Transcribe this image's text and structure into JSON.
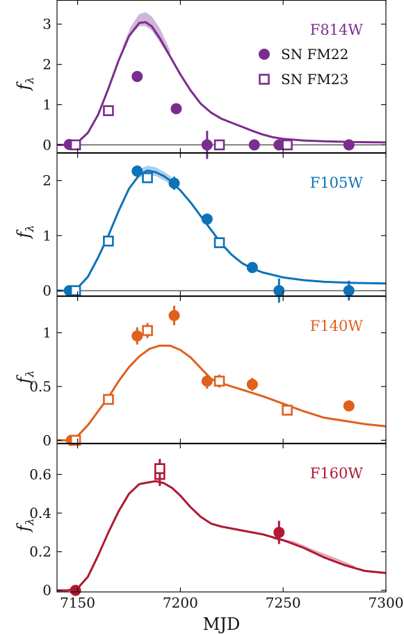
{
  "chart_data": {
    "type": "scatter",
    "xlabel": "MJD",
    "ylabel": "fλ",
    "ylabel_main": "f",
    "ylabel_sub": "λ",
    "xlim": [
      7140,
      7300
    ],
    "xticks": [
      7150,
      7200,
      7250,
      7300
    ],
    "xtick_labels": [
      "7150",
      "7200",
      "7250",
      "7300"
    ],
    "legend": {
      "placement": "top-right",
      "entries": [
        "SN FM22",
        "SN FM23"
      ]
    },
    "panels": [
      {
        "filter": "F814W",
        "color": "#7b2d8e",
        "band_color": "#d1b4dc",
        "ylim": [
          -0.2,
          3.6
        ],
        "yticks": [
          0,
          1,
          2,
          3
        ],
        "ytick_labels": [
          "0",
          "1",
          "2",
          "3"
        ],
        "zero_line": true,
        "model": [
          [
            7140,
            0.0
          ],
          [
            7145,
            0.0
          ],
          [
            7150,
            0.06
          ],
          [
            7155,
            0.3
          ],
          [
            7160,
            0.75
          ],
          [
            7165,
            1.4
          ],
          [
            7170,
            2.1
          ],
          [
            7175,
            2.7
          ],
          [
            7180,
            3.03
          ],
          [
            7183,
            3.05
          ],
          [
            7186,
            2.95
          ],
          [
            7190,
            2.65
          ],
          [
            7195,
            2.2
          ],
          [
            7200,
            1.75
          ],
          [
            7205,
            1.35
          ],
          [
            7210,
            1.02
          ],
          [
            7215,
            0.8
          ],
          [
            7220,
            0.65
          ],
          [
            7225,
            0.55
          ],
          [
            7230,
            0.45
          ],
          [
            7235,
            0.35
          ],
          [
            7240,
            0.26
          ],
          [
            7245,
            0.19
          ],
          [
            7250,
            0.15
          ],
          [
            7260,
            0.11
          ],
          [
            7270,
            0.09
          ],
          [
            7285,
            0.07
          ],
          [
            7300,
            0.06
          ]
        ],
        "band": [
          [
            7172,
            2.35,
            2.45
          ],
          [
            7176,
            2.75,
            2.95
          ],
          [
            7180,
            2.95,
            3.25
          ],
          [
            7183,
            2.95,
            3.3
          ],
          [
            7186,
            2.85,
            3.2
          ],
          [
            7190,
            2.55,
            2.9
          ],
          [
            7195,
            2.15,
            2.35
          ]
        ],
        "fm22": [
          [
            7146,
            0.01,
            0.03
          ],
          [
            7179,
            1.7,
            0.05
          ],
          [
            7198,
            0.9,
            0.05
          ],
          [
            7213,
            0.0,
            0.35
          ],
          [
            7236,
            0.0,
            0.05
          ],
          [
            7248,
            0.0,
            0.05
          ],
          [
            7282,
            0.0,
            0.05
          ]
        ],
        "fm23": [
          [
            7149,
            0.0,
            0.04
          ],
          [
            7165,
            0.85,
            0.06
          ],
          [
            7219,
            0.0,
            0.05
          ],
          [
            7252,
            0.0,
            0.05
          ]
        ]
      },
      {
        "filter": "F105W",
        "color": "#0e72b8",
        "band_color": "#a9d1ee",
        "ylim": [
          -0.1,
          2.5
        ],
        "yticks": [
          0,
          1,
          2
        ],
        "ytick_labels": [
          "0",
          "1",
          "2"
        ],
        "zero_line": true,
        "model": [
          [
            7140,
            0.0
          ],
          [
            7145,
            0.0
          ],
          [
            7150,
            0.05
          ],
          [
            7155,
            0.25
          ],
          [
            7160,
            0.6
          ],
          [
            7165,
            1.0
          ],
          [
            7170,
            1.45
          ],
          [
            7175,
            1.85
          ],
          [
            7180,
            2.1
          ],
          [
            7184,
            2.18
          ],
          [
            7188,
            2.15
          ],
          [
            7192,
            2.08
          ],
          [
            7195,
            2.0
          ],
          [
            7200,
            1.82
          ],
          [
            7205,
            1.6
          ],
          [
            7210,
            1.35
          ],
          [
            7215,
            1.1
          ],
          [
            7220,
            0.85
          ],
          [
            7225,
            0.65
          ],
          [
            7230,
            0.5
          ],
          [
            7235,
            0.4
          ],
          [
            7240,
            0.33
          ],
          [
            7250,
            0.24
          ],
          [
            7260,
            0.19
          ],
          [
            7270,
            0.16
          ],
          [
            7285,
            0.14
          ],
          [
            7300,
            0.13
          ]
        ],
        "band": [
          [
            7180,
            2.05,
            2.2
          ],
          [
            7184,
            2.1,
            2.27
          ],
          [
            7188,
            2.08,
            2.24
          ],
          [
            7192,
            2.0,
            2.16
          ],
          [
            7196,
            1.93,
            2.06
          ]
        ],
        "fm22": [
          [
            7146,
            0.0,
            0.03
          ],
          [
            7179,
            2.17,
            0.1
          ],
          [
            7197,
            1.95,
            0.12
          ],
          [
            7213,
            1.3,
            0.06
          ],
          [
            7235,
            0.42,
            0.06
          ],
          [
            7248,
            0.0,
            0.22
          ],
          [
            7282,
            0.0,
            0.18
          ]
        ],
        "fm23": [
          [
            7149,
            0.0,
            0.04
          ],
          [
            7165,
            0.9,
            0.06
          ],
          [
            7184,
            2.05,
            0.08
          ],
          [
            7219,
            0.87,
            0.06
          ]
        ]
      },
      {
        "filter": "F140W",
        "color": "#e0601d",
        "band_color": "#f4c3a4",
        "ylim": [
          -0.03,
          1.34
        ],
        "yticks": [
          0,
          0.5,
          1
        ],
        "ytick_labels": [
          "0",
          "0.5",
          "1"
        ],
        "zero_line": false,
        "model": [
          [
            7140,
            0.0
          ],
          [
            7145,
            0.0
          ],
          [
            7150,
            0.04
          ],
          [
            7155,
            0.14
          ],
          [
            7160,
            0.27
          ],
          [
            7165,
            0.4
          ],
          [
            7170,
            0.55
          ],
          [
            7175,
            0.68
          ],
          [
            7180,
            0.78
          ],
          [
            7185,
            0.85
          ],
          [
            7190,
            0.88
          ],
          [
            7195,
            0.88
          ],
          [
            7200,
            0.84
          ],
          [
            7205,
            0.77
          ],
          [
            7210,
            0.67
          ],
          [
            7215,
            0.57
          ],
          [
            7220,
            0.53
          ],
          [
            7225,
            0.5
          ],
          [
            7230,
            0.47
          ],
          [
            7240,
            0.41
          ],
          [
            7250,
            0.34
          ],
          [
            7260,
            0.27
          ],
          [
            7270,
            0.21
          ],
          [
            7280,
            0.18
          ],
          [
            7290,
            0.15
          ],
          [
            7300,
            0.13
          ]
        ],
        "band": [],
        "fm22": [
          [
            7147,
            0.0,
            0.02
          ],
          [
            7179,
            0.97,
            0.08
          ],
          [
            7197,
            1.16,
            0.09
          ],
          [
            7213,
            0.55,
            0.07
          ],
          [
            7235,
            0.52,
            0.06
          ],
          [
            7282,
            0.32,
            0.03
          ]
        ],
        "fm23": [
          [
            7149,
            0.0,
            0.03
          ],
          [
            7165,
            0.38,
            0.04
          ],
          [
            7184,
            1.02,
            0.07
          ],
          [
            7219,
            0.55,
            0.06
          ],
          [
            7252,
            0.28,
            0.04
          ]
        ]
      },
      {
        "filter": "F160W",
        "color": "#b01833",
        "band_color": "#e5a8b4",
        "ylim": [
          -0.01,
          0.76
        ],
        "yticks": [
          0,
          0.2,
          0.4,
          0.6
        ],
        "ytick_labels": [
          "0",
          "0.2",
          "0.4",
          "0.6"
        ],
        "zero_line": false,
        "model": [
          [
            7140,
            0.0
          ],
          [
            7145,
            0.0
          ],
          [
            7150,
            0.01
          ],
          [
            7155,
            0.07
          ],
          [
            7160,
            0.18
          ],
          [
            7165,
            0.3
          ],
          [
            7170,
            0.41
          ],
          [
            7175,
            0.5
          ],
          [
            7180,
            0.55
          ],
          [
            7185,
            0.56
          ],
          [
            7188,
            0.565
          ],
          [
            7192,
            0.555
          ],
          [
            7196,
            0.53
          ],
          [
            7200,
            0.49
          ],
          [
            7205,
            0.43
          ],
          [
            7210,
            0.38
          ],
          [
            7215,
            0.345
          ],
          [
            7220,
            0.33
          ],
          [
            7230,
            0.31
          ],
          [
            7240,
            0.29
          ],
          [
            7250,
            0.26
          ],
          [
            7260,
            0.22
          ],
          [
            7270,
            0.17
          ],
          [
            7280,
            0.13
          ],
          [
            7290,
            0.1
          ],
          [
            7300,
            0.09
          ]
        ],
        "band": [
          [
            7245,
            0.265,
            0.275
          ],
          [
            7255,
            0.24,
            0.255
          ],
          [
            7265,
            0.19,
            0.21
          ],
          [
            7275,
            0.15,
            0.17
          ],
          [
            7285,
            0.115,
            0.125
          ]
        ],
        "fm22": [
          [
            7149,
            0.0,
            0.015
          ],
          [
            7248,
            0.3,
            0.06
          ]
        ],
        "fm23": [
          [
            7190,
            0.6,
            0.06
          ],
          [
            7190,
            0.63,
            0.05
          ]
        ]
      }
    ]
  }
}
